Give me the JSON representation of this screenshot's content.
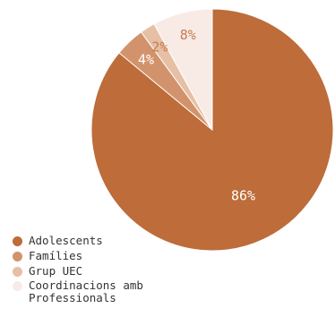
{
  "chart_data": {
    "type": "pie",
    "categories": [
      "Adolescents",
      "Famílies",
      "Grup UEC",
      "Coordinacions amb Professionals"
    ],
    "values": [
      86,
      4,
      2,
      8
    ],
    "value_labels": [
      "86%",
      "4%",
      "2%",
      "8%"
    ],
    "colors": [
      "#bd6c3a",
      "#d2936c",
      "#e6bfa4",
      "#f8ebe6"
    ],
    "label_colors": [
      "#ffffff",
      "#ffffff",
      "#c77a50",
      "#c77a50"
    ],
    "legend_position": "bottom-left"
  }
}
